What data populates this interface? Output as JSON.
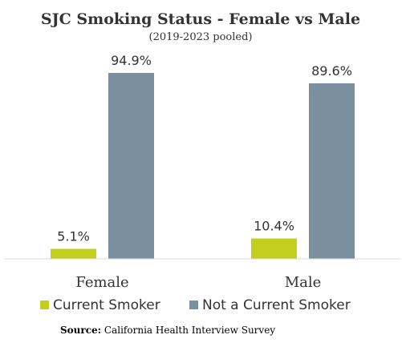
{
  "chart_data": {
    "type": "bar",
    "title": "SJC Smoking Status - Female vs Male",
    "subtitle": "(2019-2023 pooled)",
    "categories": [
      "Female",
      "Male"
    ],
    "series": [
      {
        "name": "Current Smoker",
        "values": [
          5.1,
          10.4
        ],
        "labels": [
          "5.1%",
          "10.4%"
        ],
        "color": "#c2cf1c"
      },
      {
        "name": "Not a Current Smoker",
        "values": [
          94.9,
          89.6
        ],
        "labels": [
          "94.9%",
          "89.6%"
        ],
        "color": "#7b909f"
      }
    ],
    "ylim": [
      0,
      100
    ],
    "grid": false,
    "legend": "bottom"
  },
  "source": {
    "label": "Source:",
    "text": "California Health Interview Survey"
  }
}
